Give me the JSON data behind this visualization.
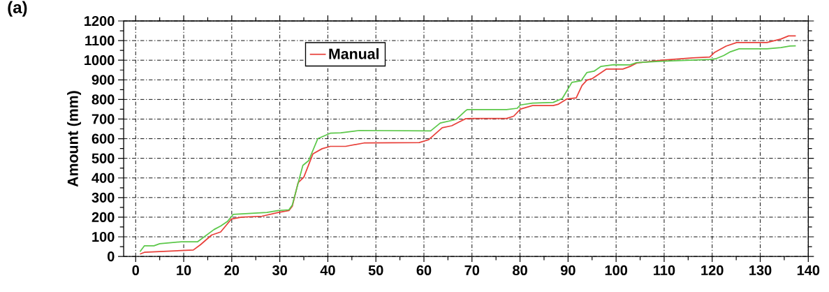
{
  "chart_data": {
    "type": "line",
    "title": "(a)",
    "ylabel": "Amount (mm)",
    "xlim": [
      -2.5,
      140
    ],
    "ylim": [
      0,
      1200
    ],
    "xticks": [
      0,
      10,
      20,
      30,
      40,
      50,
      60,
      70,
      80,
      90,
      100,
      110,
      120,
      130,
      140
    ],
    "yticks": [
      0,
      100,
      200,
      300,
      400,
      500,
      600,
      700,
      800,
      900,
      1000,
      1100,
      1200
    ],
    "grid": true,
    "legend": "top left",
    "marker": "none",
    "line_style": "solid",
    "series": [
      {
        "name": "Manual",
        "color": "#e8403a",
        "x": [
          0.9,
          1.8,
          12,
          13.5,
          15.8,
          17.7,
          19.9,
          22,
          26.3,
          29.7,
          31.9,
          32.6,
          33.8,
          35,
          36.9,
          38.8,
          40.5,
          43.7,
          47.5,
          59,
          61,
          63.8,
          65.8,
          67.2,
          68.7,
          70,
          77.2,
          78.7,
          80.1,
          82.6,
          86.9,
          87.9,
          89.8,
          91.7,
          92.9,
          93.9,
          95.1,
          98,
          101.4,
          102.9,
          104.3,
          109.6,
          115.9,
          119.5,
          120.5,
          122.9,
          125.1,
          131.4,
          134.3,
          135.9,
          137.4
        ],
        "values": [
          12,
          21,
          33,
          60,
          109,
          125,
          190,
          200,
          205,
          224,
          234,
          256,
          375,
          404,
          523,
          549,
          561,
          561,
          578,
          580,
          595,
          656,
          666,
          684,
          702,
          703,
          703,
          715,
          751,
          769,
          769,
          775,
          803,
          808,
          871,
          898,
          907,
          955,
          955,
          968,
          986,
          1000,
          1012,
          1016,
          1040,
          1072,
          1090,
          1090,
          1108,
          1124,
          1124
        ]
      },
      {
        "color": "#5cc84a",
        "x": [
          0.9,
          1.8,
          3.8,
          5,
          9.5,
          12.9,
          16.3,
          17.7,
          19.1,
          20.3,
          23.5,
          27.3,
          29.7,
          31.9,
          32.6,
          34.8,
          36,
          37.9,
          40.5,
          42.7,
          46.5,
          61.4,
          63.4,
          66.7,
          68.7,
          69,
          77.2,
          79.4,
          80.1,
          82.6,
          86.9,
          88.8,
          90.8,
          92.7,
          93.9,
          95.4,
          96.8,
          99.5,
          102.9,
          104.3,
          109.6,
          119.5,
          120.7,
          122.4,
          123.8,
          125.6,
          131.4,
          134.3,
          136.2,
          137.4
        ],
        "values": [
          24,
          54,
          54,
          65,
          75,
          75,
          137,
          155,
          178,
          214,
          219,
          224,
          234,
          238,
          262,
          464,
          488,
          600,
          628,
          630,
          642,
          640,
          680,
          698,
          743,
          748,
          748,
          755,
          772,
          781,
          785,
          805,
          887,
          895,
          937,
          944,
          968,
          977,
          976,
          988,
          995,
          1004,
          1007,
          1024,
          1043,
          1058,
          1058,
          1064,
          1072,
          1073
        ]
      }
    ]
  }
}
